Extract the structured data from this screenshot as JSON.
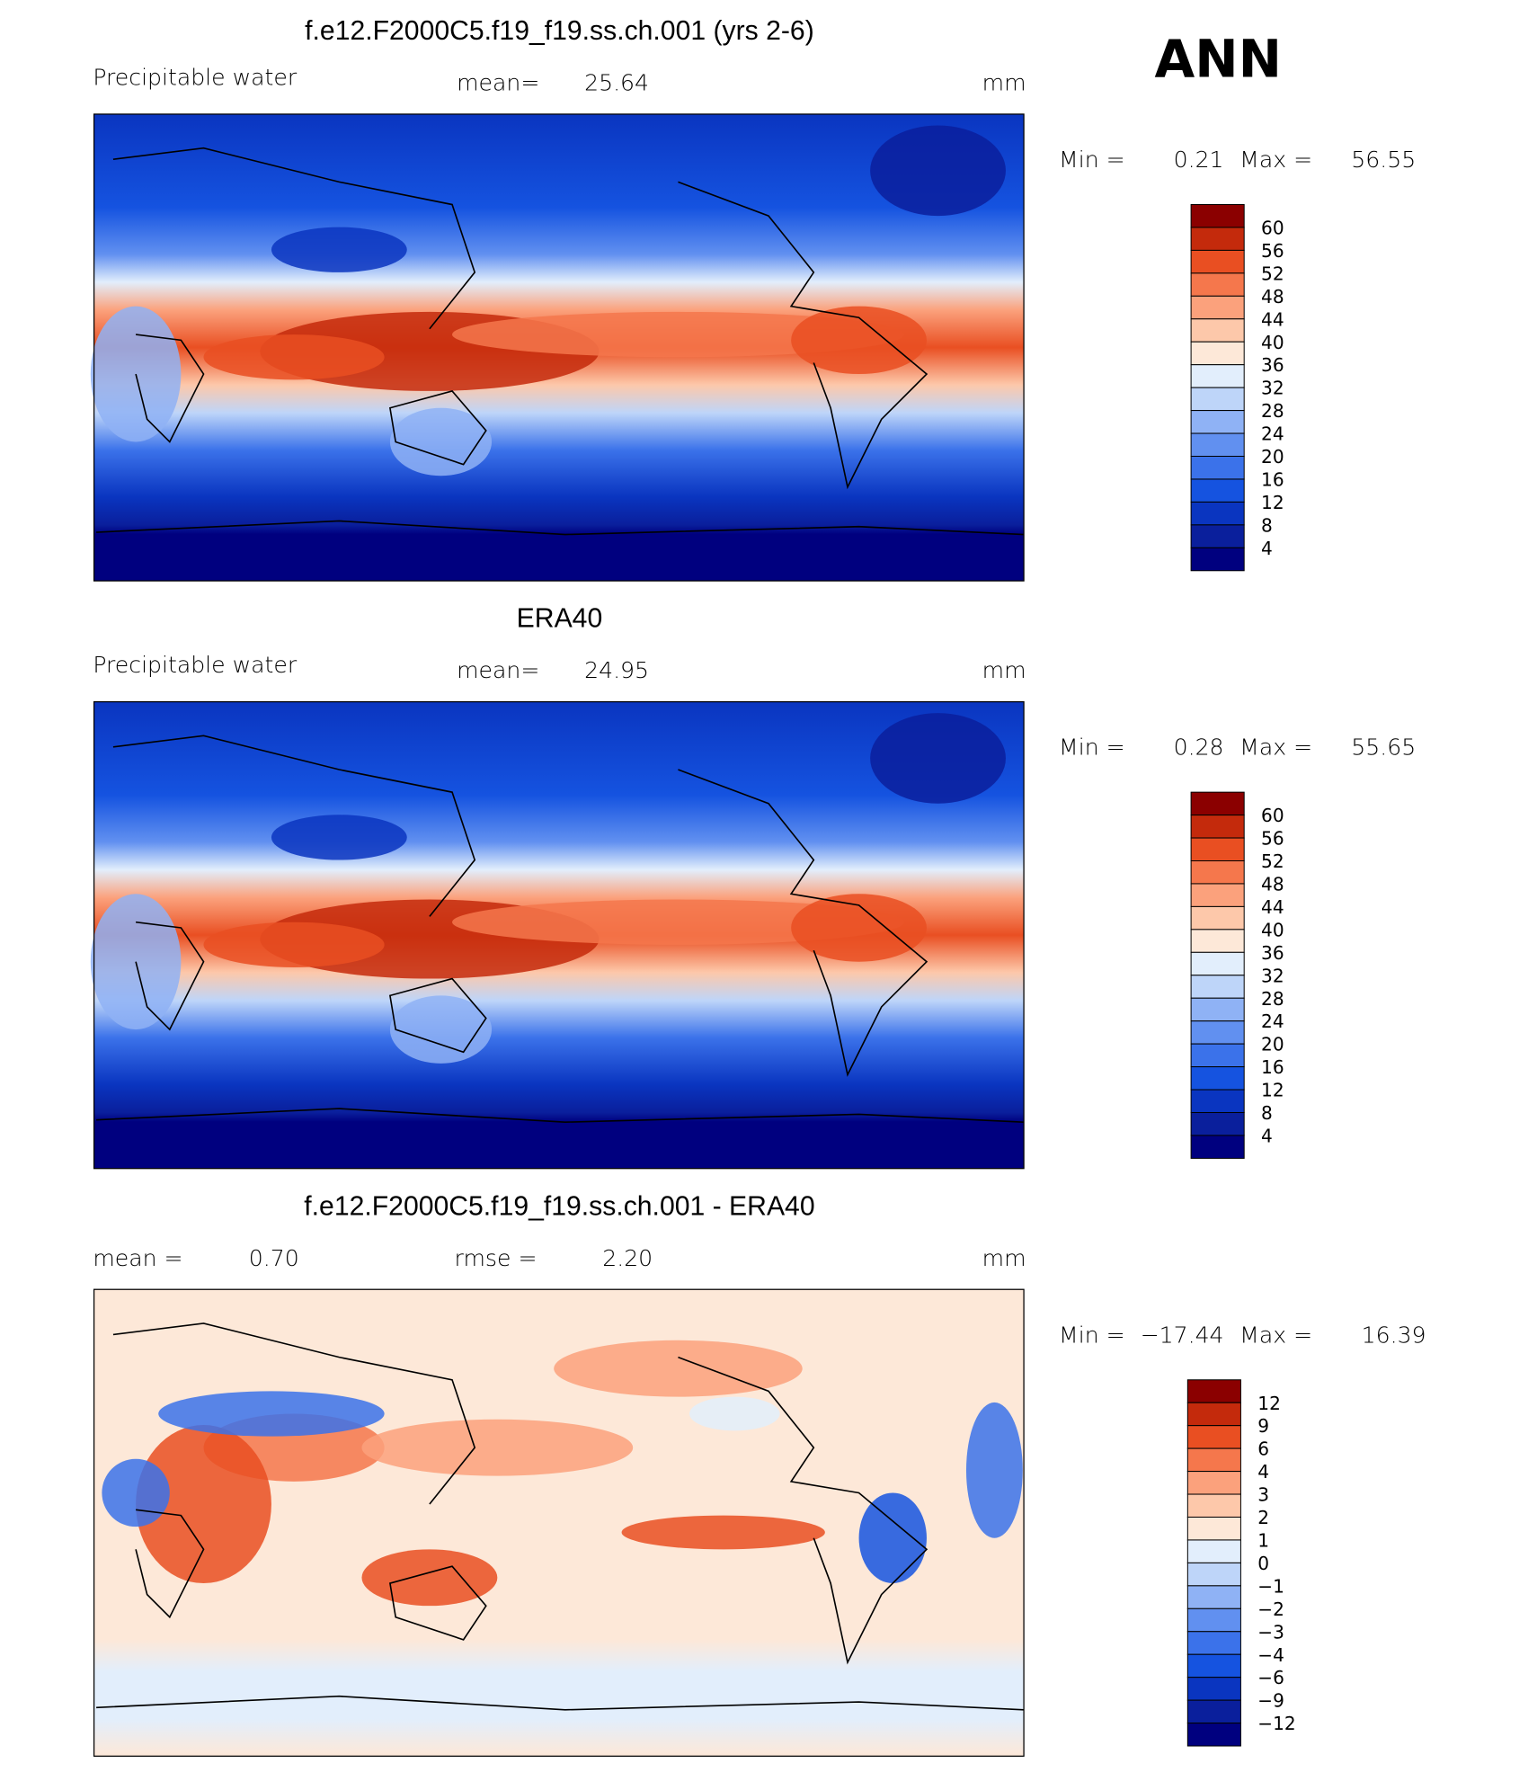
{
  "header": {
    "label": "ANN"
  },
  "panels": [
    {
      "title": "f.e12.F2000C5.f19_f19.ss.ch.001 (yrs 2-6)",
      "variable": "Precipitable water",
      "mean_label": "mean=",
      "mean": "25.64",
      "units": "mm",
      "min_label": "Min =",
      "min": "0.21",
      "max_label": "Max =",
      "max": "56.55",
      "colorbar": [
        "60",
        "56",
        "52",
        "48",
        "44",
        "40",
        "36",
        "32",
        "28",
        "24",
        "20",
        "16",
        "12",
        "8",
        "4"
      ]
    },
    {
      "title": "ERA40",
      "variable": "Precipitable water",
      "mean_label": "mean=",
      "mean": "24.95",
      "units": "mm",
      "min_label": "Min =",
      "min": "0.28",
      "max_label": "Max =",
      "max": "55.65",
      "colorbar": [
        "60",
        "56",
        "52",
        "48",
        "44",
        "40",
        "36",
        "32",
        "28",
        "24",
        "20",
        "16",
        "12",
        "8",
        "4"
      ]
    },
    {
      "title": "f.e12.F2000C5.f19_f19.ss.ch.001 - ERA40",
      "mean_label": "mean =",
      "mean": "0.70",
      "rmse_label": "rmse =",
      "rmse": "2.20",
      "units": "mm",
      "min_label": "Min =",
      "min": "−17.44",
      "max_label": "Max =",
      "max": "16.39",
      "colorbar": [
        "12",
        "9",
        "6",
        "4",
        "3",
        "2",
        "1",
        "0",
        "−1",
        "−2",
        "−3",
        "−4",
        "−6",
        "−9",
        "−12"
      ]
    }
  ]
}
